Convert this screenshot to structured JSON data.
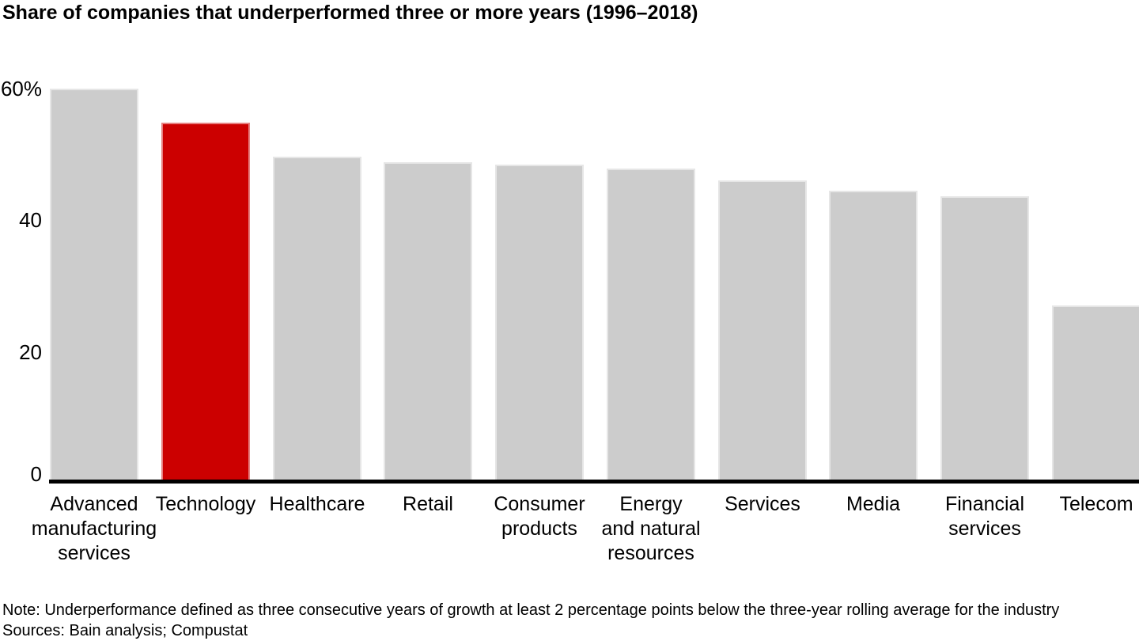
{
  "title": "Share of companies that underperformed three or more years (1996–2018)",
  "chart_data": {
    "type": "bar",
    "title": "Share of companies that underperformed three or more years (1996–2018)",
    "categories": [
      "Advanced manufacturing services",
      "Technology",
      "Healthcare",
      "Retail",
      "Consumer products",
      "Energy and natural resources",
      "Services",
      "Media",
      "Financial services",
      "Telecom"
    ],
    "category_lines": [
      [
        "Advanced",
        "manufacturing",
        "services"
      ],
      [
        "Technology"
      ],
      [
        "Healthcare"
      ],
      [
        "Retail"
      ],
      [
        "Consumer",
        "products"
      ],
      [
        "Energy",
        "and natural",
        "resources"
      ],
      [
        "Services"
      ],
      [
        "Media"
      ],
      [
        "Financial",
        "services"
      ],
      [
        "Telecom"
      ]
    ],
    "values": [
      60,
      54.8,
      49.7,
      48.8,
      48.5,
      47.9,
      46,
      44.5,
      43.6,
      27
    ],
    "unit": "%",
    "highlight_index": 1,
    "bar_color": "#cccccc",
    "highlight_color": "#cc0000",
    "axis_color": "#000000",
    "xlabel": "",
    "ylabel": "",
    "ylim": [
      0,
      60
    ],
    "yticks": [
      {
        "value": 0,
        "label": "0"
      },
      {
        "value": 20,
        "label": "20"
      },
      {
        "value": 40,
        "label": "40"
      },
      {
        "value": 60,
        "label": "60%"
      }
    ],
    "grid": false,
    "legend": "none"
  },
  "note": "Note: Underperformance defined as three consecutive years of growth at least 2 percentage points below the three-year rolling average for the industry",
  "sources": "Sources: Bain analysis; Compustat"
}
